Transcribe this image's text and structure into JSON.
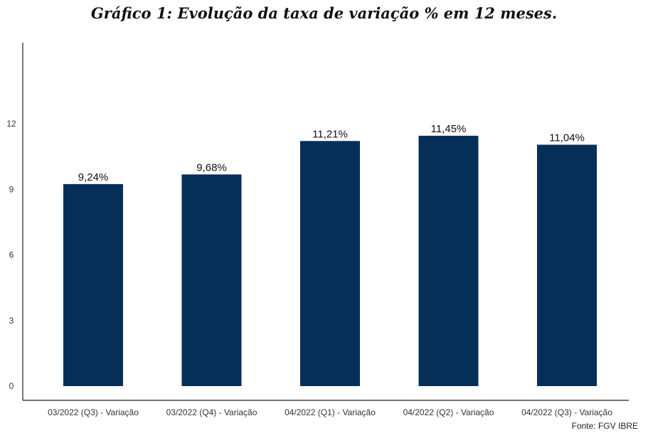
{
  "chart_data": {
    "type": "bar",
    "title": "Gráfico 1: Evolução da taxa de variação % em 12 meses.",
    "categories": [
      "03/2022 (Q3) - Variação",
      "03/2022 (Q4) - Variação",
      "04/2022 (Q1) - Variação",
      "04/2022 (Q2) - Variação",
      "04/2022 (Q3) - Variação"
    ],
    "values": [
      9.24,
      9.68,
      11.21,
      11.45,
      11.04
    ],
    "data_labels": [
      "9,24%",
      "9,68%",
      "11,21%",
      "11,45%",
      "11,04%"
    ],
    "yticks": [
      0,
      3,
      6,
      9,
      12
    ],
    "ylim": [
      0,
      15.5
    ],
    "xlabel": "",
    "ylabel": "",
    "grid": false,
    "bar_color": "#062f57",
    "source": "Fonte: FGV IBRE"
  }
}
